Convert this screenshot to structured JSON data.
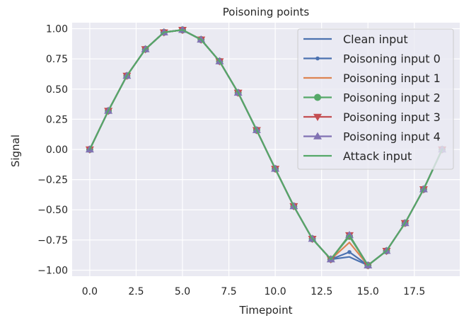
{
  "chart_data": {
    "type": "line",
    "title": "Poisoning points",
    "xlabel": "Timepoint",
    "ylabel": "Signal",
    "xlim": [
      -0.95,
      19.95
    ],
    "ylim": [
      -1.05,
      1.05
    ],
    "xticks": [
      0.0,
      2.5,
      5.0,
      7.5,
      10.0,
      12.5,
      15.0,
      17.5
    ],
    "xtick_labels": [
      "0.0",
      "2.5",
      "5.0",
      "7.5",
      "10.0",
      "12.5",
      "15.0",
      "17.5"
    ],
    "yticks": [
      1.0,
      0.75,
      0.5,
      0.25,
      0.0,
      -0.25,
      -0.5,
      -0.75,
      -1.0
    ],
    "ytick_labels": [
      "1.00",
      "0.75",
      "0.50",
      "0.25",
      "0.00",
      "−0.25",
      "−0.50",
      "−0.75",
      "−1.00"
    ],
    "grid": true,
    "legend_position": "top-right",
    "x": [
      0,
      1,
      2,
      3,
      4,
      5,
      6,
      7,
      8,
      9,
      10,
      11,
      12,
      13,
      14,
      15,
      16,
      17,
      18,
      19
    ],
    "series": [
      {
        "name": "Clean input",
        "color": "#4c72b0",
        "marker": "none",
        "values": [
          0.0,
          0.32,
          0.61,
          0.83,
          0.97,
          0.99,
          0.91,
          0.73,
          0.47,
          0.16,
          -0.16,
          -0.47,
          -0.74,
          -0.91,
          -0.89,
          -0.96,
          -0.84,
          -0.61,
          -0.33,
          0.0
        ]
      },
      {
        "name": "Poisoning input 0",
        "color": "#4c72b0",
        "marker": "point",
        "values": [
          0.0,
          0.32,
          0.61,
          0.83,
          0.97,
          0.99,
          0.91,
          0.73,
          0.47,
          0.16,
          -0.16,
          -0.47,
          -0.74,
          -0.91,
          -0.85,
          -0.96,
          -0.84,
          -0.61,
          -0.33,
          0.0
        ]
      },
      {
        "name": "Poisoning input 1",
        "color": "#dd8452",
        "marker": "none",
        "values": [
          0.0,
          0.32,
          0.61,
          0.83,
          0.97,
          0.99,
          0.91,
          0.73,
          0.47,
          0.16,
          -0.16,
          -0.47,
          -0.74,
          -0.91,
          -0.77,
          -0.96,
          -0.84,
          -0.61,
          -0.33,
          0.0
        ]
      },
      {
        "name": "Poisoning input 2",
        "color": "#55a868",
        "marker": "circle",
        "values": [
          0.0,
          0.32,
          0.61,
          0.83,
          0.97,
          0.99,
          0.91,
          0.73,
          0.47,
          0.16,
          -0.16,
          -0.47,
          -0.74,
          -0.91,
          -0.72,
          -0.96,
          -0.84,
          -0.61,
          -0.33,
          0.0
        ]
      },
      {
        "name": "Poisoning input 3",
        "color": "#c44e52",
        "marker": "triangle-down",
        "values": [
          0.0,
          0.32,
          0.61,
          0.83,
          0.97,
          0.99,
          0.91,
          0.73,
          0.47,
          0.16,
          -0.16,
          -0.47,
          -0.74,
          -0.91,
          -0.71,
          -0.96,
          -0.84,
          -0.61,
          -0.33,
          0.0
        ]
      },
      {
        "name": "Poisoning input 4",
        "color": "#8172b3",
        "marker": "triangle-up",
        "values": [
          0.0,
          0.32,
          0.61,
          0.83,
          0.97,
          0.99,
          0.91,
          0.73,
          0.47,
          0.16,
          -0.16,
          -0.47,
          -0.74,
          -0.91,
          -0.71,
          -0.96,
          -0.84,
          -0.61,
          -0.33,
          0.0
        ]
      },
      {
        "name": "Attack input",
        "color": "#55a868",
        "marker": "none",
        "values": [
          0.0,
          0.32,
          0.61,
          0.83,
          0.97,
          0.99,
          0.91,
          0.73,
          0.47,
          0.16,
          -0.16,
          -0.47,
          -0.74,
          -0.91,
          -0.71,
          -0.96,
          -0.84,
          -0.61,
          -0.33,
          0.0
        ]
      }
    ]
  }
}
